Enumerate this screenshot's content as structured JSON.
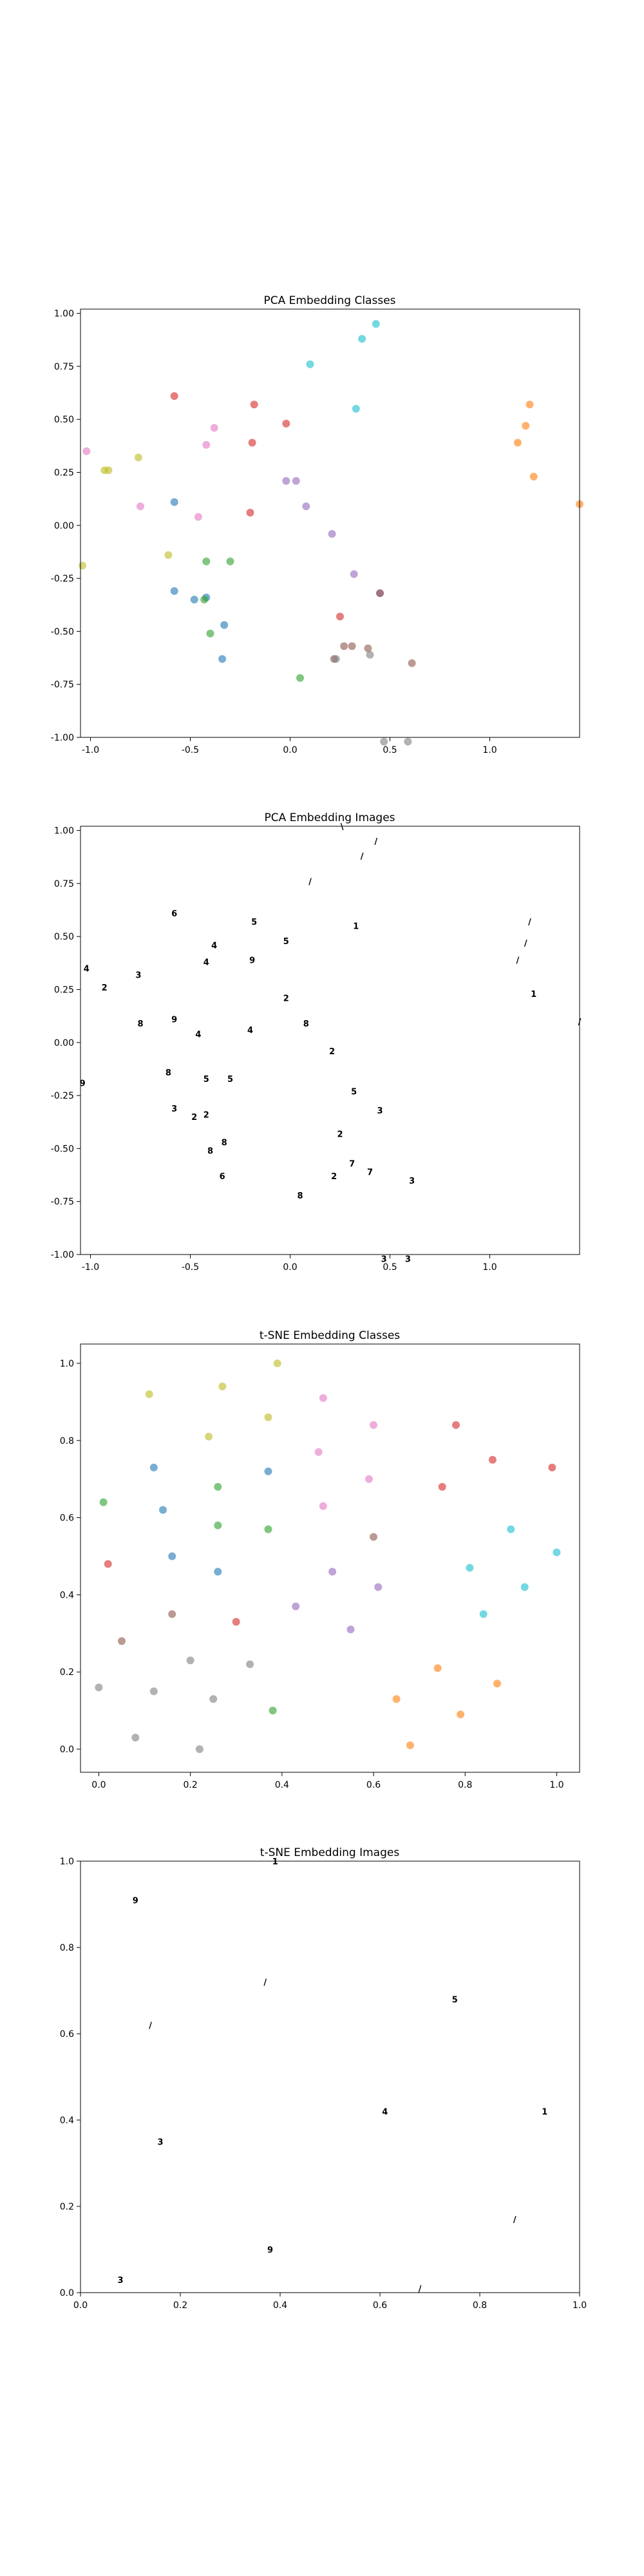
{
  "chart_data": [
    {
      "type": "scatter",
      "title": "PCA Embedding Classes",
      "xlim": [
        -1.05,
        1.45
      ],
      "ylim": [
        -1.0,
        1.02
      ],
      "xticks": [
        "-1.0",
        "-0.5",
        "0.0",
        "0.5",
        "1.0"
      ],
      "xtick_values": [
        -1.0,
        -0.5,
        0.0,
        0.5,
        1.0
      ],
      "yticks": [
        "-1.00",
        "-0.75",
        "-0.50",
        "-0.25",
        "0.00",
        "0.25",
        "0.50",
        "0.75",
        "1.00"
      ],
      "ytick_values": [
        -1.0,
        -0.75,
        -0.5,
        -0.25,
        0.0,
        0.25,
        0.5,
        0.75,
        1.0
      ],
      "grid": false,
      "series": [
        {
          "color": "#1f77b4",
          "points": [
            [
              -0.58,
              0.11
            ],
            [
              -0.58,
              -0.31
            ],
            [
              -0.48,
              -0.35
            ],
            [
              -0.42,
              -0.34
            ],
            [
              -0.33,
              -0.47
            ],
            [
              -0.34,
              -0.63
            ]
          ]
        },
        {
          "color": "#ff7f0e",
          "points": [
            [
              1.2,
              0.57
            ],
            [
              1.18,
              0.47
            ],
            [
              1.14,
              0.39
            ],
            [
              1.22,
              0.23
            ],
            [
              1.45,
              0.1
            ]
          ]
        },
        {
          "color": "#2ca02c",
          "points": [
            [
              -0.42,
              -0.17
            ],
            [
              -0.3,
              -0.17
            ],
            [
              -0.43,
              -0.35
            ],
            [
              -0.4,
              -0.51
            ],
            [
              0.05,
              -0.72
            ]
          ]
        },
        {
          "color": "#d62728",
          "points": [
            [
              -0.58,
              0.61
            ],
            [
              -0.18,
              0.57
            ],
            [
              -0.19,
              0.39
            ],
            [
              -0.2,
              0.06
            ],
            [
              -0.02,
              0.48
            ],
            [
              0.25,
              -0.43
            ]
          ]
        },
        {
          "color": "#9467bd",
          "points": [
            [
              -0.02,
              0.21
            ],
            [
              0.03,
              0.21
            ],
            [
              0.08,
              0.09
            ],
            [
              0.21,
              -0.04
            ],
            [
              0.32,
              -0.23
            ],
            [
              0.45,
              -0.32
            ]
          ]
        },
        {
          "color": "#8c564b",
          "points": [
            [
              0.45,
              -0.32
            ],
            [
              0.27,
              -0.57
            ],
            [
              0.31,
              -0.57
            ],
            [
              0.22,
              -0.63
            ],
            [
              0.39,
              -0.58
            ],
            [
              0.61,
              -0.65
            ]
          ]
        },
        {
          "color": "#e377c2",
          "points": [
            [
              -1.02,
              0.35
            ],
            [
              -0.42,
              0.38
            ],
            [
              -0.38,
              0.46
            ],
            [
              -0.75,
              0.09
            ],
            [
              -0.46,
              0.04
            ]
          ]
        },
        {
          "color": "#7f7f7f",
          "points": [
            [
              0.4,
              -0.61
            ],
            [
              0.47,
              -1.02
            ],
            [
              0.59,
              -1.02
            ],
            [
              0.23,
              -0.63
            ]
          ]
        },
        {
          "color": "#bcbd22",
          "points": [
            [
              -0.93,
              0.26
            ],
            [
              -0.91,
              0.26
            ],
            [
              -0.76,
              0.32
            ],
            [
              -0.61,
              -0.14
            ],
            [
              -1.04,
              -0.19
            ]
          ]
        },
        {
          "color": "#17becf",
          "points": [
            [
              0.43,
              0.95
            ],
            [
              0.36,
              0.88
            ],
            [
              0.1,
              0.76
            ],
            [
              0.33,
              0.55
            ]
          ]
        }
      ]
    },
    {
      "type": "scatter",
      "title": "PCA Embedding Images",
      "xlim": [
        -1.05,
        1.45
      ],
      "ylim": [
        -1.0,
        1.02
      ],
      "xticks": [
        "-1.0",
        "-0.5",
        "0.0",
        "0.5",
        "1.0"
      ],
      "xtick_values": [
        -1.0,
        -0.5,
        0.0,
        0.5,
        1.0
      ],
      "yticks": [
        "-1.00",
        "-0.75",
        "-0.50",
        "-0.25",
        "0.00",
        "0.25",
        "0.50",
        "0.75",
        "1.00"
      ],
      "ytick_values": [
        -1.0,
        -0.75,
        -0.5,
        -0.25,
        0.0,
        0.25,
        0.5,
        0.75,
        1.0
      ],
      "grid": false,
      "glyphs": [
        {
          "x": 0.26,
          "y": 1.02,
          "t": "\\"
        },
        {
          "x": 0.43,
          "y": 0.95,
          "t": "/"
        },
        {
          "x": 0.36,
          "y": 0.88,
          "t": "/"
        },
        {
          "x": 0.1,
          "y": 0.76,
          "t": "/"
        },
        {
          "x": -0.58,
          "y": 0.61,
          "t": "6"
        },
        {
          "x": -0.18,
          "y": 0.57,
          "t": "5"
        },
        {
          "x": 0.33,
          "y": 0.55,
          "t": "1"
        },
        {
          "x": 1.2,
          "y": 0.57,
          "t": "/"
        },
        {
          "x": -0.38,
          "y": 0.46,
          "t": "4"
        },
        {
          "x": -0.02,
          "y": 0.48,
          "t": "5"
        },
        {
          "x": 1.18,
          "y": 0.47,
          "t": "/"
        },
        {
          "x": -0.42,
          "y": 0.38,
          "t": "4"
        },
        {
          "x": -0.19,
          "y": 0.39,
          "t": "9"
        },
        {
          "x": 1.14,
          "y": 0.39,
          "t": "/"
        },
        {
          "x": -1.02,
          "y": 0.35,
          "t": "4"
        },
        {
          "x": -0.93,
          "y": 0.26,
          "t": "2"
        },
        {
          "x": -0.76,
          "y": 0.32,
          "t": "3"
        },
        {
          "x": -0.02,
          "y": 0.21,
          "t": "2"
        },
        {
          "x": 1.22,
          "y": 0.23,
          "t": "1"
        },
        {
          "x": -0.58,
          "y": 0.11,
          "t": "9"
        },
        {
          "x": 0.08,
          "y": 0.09,
          "t": "8"
        },
        {
          "x": 1.45,
          "y": 0.1,
          "t": "/"
        },
        {
          "x": -0.75,
          "y": 0.09,
          "t": "8"
        },
        {
          "x": -0.46,
          "y": 0.04,
          "t": "4"
        },
        {
          "x": -0.2,
          "y": 0.06,
          "t": "4"
        },
        {
          "x": 0.21,
          "y": -0.04,
          "t": "2"
        },
        {
          "x": -1.04,
          "y": -0.19,
          "t": "9"
        },
        {
          "x": -0.61,
          "y": -0.14,
          "t": "8"
        },
        {
          "x": -0.42,
          "y": -0.17,
          "t": "5"
        },
        {
          "x": -0.3,
          "y": -0.17,
          "t": "5"
        },
        {
          "x": 0.32,
          "y": -0.23,
          "t": "5"
        },
        {
          "x": -0.58,
          "y": -0.31,
          "t": "3"
        },
        {
          "x": 0.45,
          "y": -0.32,
          "t": "3"
        },
        {
          "x": -0.48,
          "y": -0.35,
          "t": "2"
        },
        {
          "x": -0.42,
          "y": -0.34,
          "t": "2"
        },
        {
          "x": 0.25,
          "y": -0.43,
          "t": "2"
        },
        {
          "x": -0.33,
          "y": -0.47,
          "t": "8"
        },
        {
          "x": -0.4,
          "y": -0.51,
          "t": "8"
        },
        {
          "x": 0.31,
          "y": -0.57,
          "t": "7"
        },
        {
          "x": 0.22,
          "y": -0.63,
          "t": "2"
        },
        {
          "x": 0.4,
          "y": -0.61,
          "t": "7"
        },
        {
          "x": 0.61,
          "y": -0.65,
          "t": "3"
        },
        {
          "x": -0.34,
          "y": -0.63,
          "t": "6"
        },
        {
          "x": 0.05,
          "y": -0.72,
          "t": "8"
        },
        {
          "x": 0.47,
          "y": -1.02,
          "t": "3"
        },
        {
          "x": 0.59,
          "y": -1.02,
          "t": "3"
        }
      ]
    },
    {
      "type": "scatter",
      "title": "t-SNE Embedding Classes",
      "xlim": [
        -0.04,
        1.05
      ],
      "ylim": [
        -0.06,
        1.05
      ],
      "xticks": [
        "0.0",
        "0.2",
        "0.4",
        "0.6",
        "0.8",
        "1.0"
      ],
      "xtick_values": [
        0.0,
        0.2,
        0.4,
        0.6,
        0.8,
        1.0
      ],
      "yticks": [
        "0.0",
        "0.2",
        "0.4",
        "0.6",
        "0.8",
        "1.0"
      ],
      "ytick_values": [
        0.0,
        0.2,
        0.4,
        0.6,
        0.8,
        1.0
      ],
      "grid": false,
      "series": [
        {
          "color": "#1f77b4",
          "points": [
            [
              0.12,
              0.73
            ],
            [
              0.14,
              0.62
            ],
            [
              0.16,
              0.5
            ],
            [
              0.26,
              0.46
            ],
            [
              0.37,
              0.72
            ]
          ]
        },
        {
          "color": "#ff7f0e",
          "points": [
            [
              0.65,
              0.13
            ],
            [
              0.68,
              0.01
            ],
            [
              0.74,
              0.21
            ],
            [
              0.79,
              0.09
            ],
            [
              0.87,
              0.17
            ]
          ]
        },
        {
          "color": "#2ca02c",
          "points": [
            [
              0.01,
              0.64
            ],
            [
              0.26,
              0.68
            ],
            [
              0.26,
              0.58
            ],
            [
              0.37,
              0.57
            ],
            [
              0.38,
              0.1
            ]
          ]
        },
        {
          "color": "#d62728",
          "points": [
            [
              0.02,
              0.48
            ],
            [
              0.3,
              0.33
            ],
            [
              0.78,
              0.84
            ],
            [
              0.86,
              0.75
            ],
            [
              0.75,
              0.68
            ],
            [
              0.99,
              0.73
            ]
          ]
        },
        {
          "color": "#9467bd",
          "points": [
            [
              0.43,
              0.37
            ],
            [
              0.51,
              0.46
            ],
            [
              0.55,
              0.31
            ],
            [
              0.61,
              0.42
            ]
          ]
        },
        {
          "color": "#8c564b",
          "points": [
            [
              0.05,
              0.28
            ],
            [
              0.16,
              0.35
            ],
            [
              0.6,
              0.55
            ]
          ]
        },
        {
          "color": "#e377c2",
          "points": [
            [
              0.49,
              0.91
            ],
            [
              0.48,
              0.77
            ],
            [
              0.49,
              0.63
            ],
            [
              0.59,
              0.7
            ],
            [
              0.6,
              0.84
            ]
          ]
        },
        {
          "color": "#7f7f7f",
          "points": [
            [
              0.0,
              0.16
            ],
            [
              0.08,
              0.03
            ],
            [
              0.12,
              0.15
            ],
            [
              0.2,
              0.23
            ],
            [
              0.22,
              0.0
            ],
            [
              0.25,
              0.13
            ],
            [
              0.33,
              0.22
            ]
          ]
        },
        {
          "color": "#bcbd22",
          "points": [
            [
              0.11,
              0.92
            ],
            [
              0.24,
              0.81
            ],
            [
              0.27,
              0.94
            ],
            [
              0.37,
              0.86
            ],
            [
              0.39,
              1.0
            ]
          ]
        },
        {
          "color": "#17becf",
          "points": [
            [
              0.81,
              0.47
            ],
            [
              0.84,
              0.35
            ],
            [
              0.9,
              0.57
            ],
            [
              0.93,
              0.42
            ],
            [
              1.0,
              0.51
            ]
          ]
        }
      ]
    },
    {
      "type": "scatter",
      "title": "t-SNE Embedding Images",
      "xlim": [
        0.0,
        1.0
      ],
      "ylim": [
        0.0,
        1.0
      ],
      "xticks": [
        "0.0",
        "0.2",
        "0.4",
        "0.6",
        "0.8",
        "1.0"
      ],
      "xtick_values": [
        0.0,
        0.2,
        0.4,
        0.6,
        0.8,
        1.0
      ],
      "yticks": [
        "0.0",
        "0.2",
        "0.4",
        "0.6",
        "0.8",
        "1.0"
      ],
      "ytick_values": [
        0.0,
        0.2,
        0.4,
        0.6,
        0.8,
        1.0
      ],
      "grid": false,
      "glyphs": [
        {
          "x": 0.39,
          "y": 1.0,
          "t": "1"
        },
        {
          "x": 0.11,
          "y": 0.91,
          "t": "9"
        },
        {
          "x": 0.37,
          "y": 0.72,
          "t": "/"
        },
        {
          "x": 0.75,
          "y": 0.68,
          "t": "5"
        },
        {
          "x": 0.14,
          "y": 0.62,
          "t": "/"
        },
        {
          "x": 0.61,
          "y": 0.42,
          "t": "4"
        },
        {
          "x": 0.93,
          "y": 0.42,
          "t": "1"
        },
        {
          "x": 0.16,
          "y": 0.35,
          "t": "3"
        },
        {
          "x": 0.87,
          "y": 0.17,
          "t": "/"
        },
        {
          "x": 0.38,
          "y": 0.1,
          "t": "9"
        },
        {
          "x": 0.08,
          "y": 0.03,
          "t": "3"
        },
        {
          "x": 0.68,
          "y": 0.01,
          "t": "/"
        }
      ]
    }
  ]
}
